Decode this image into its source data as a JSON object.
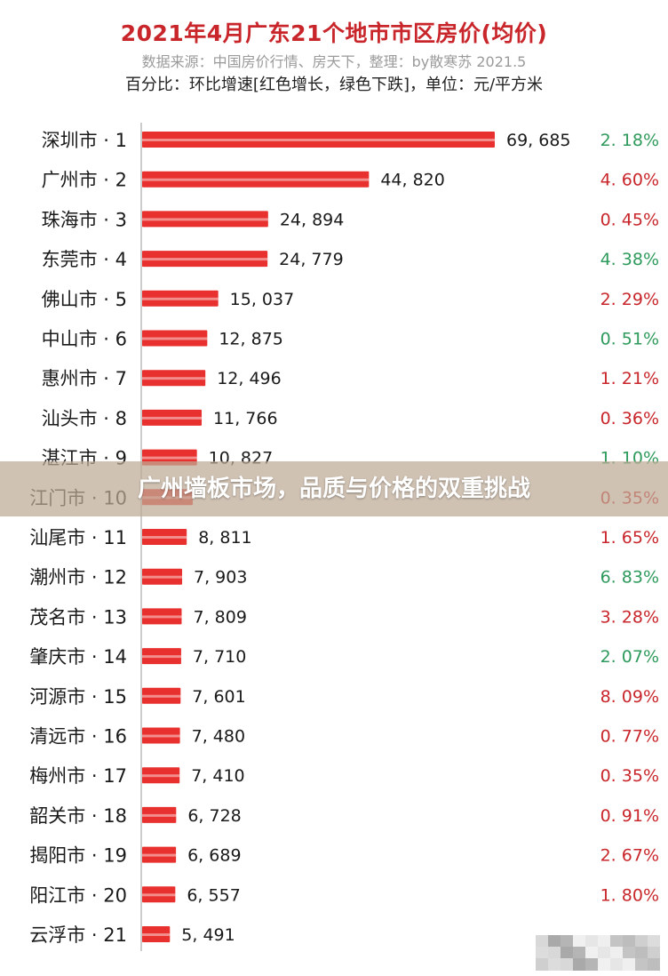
{
  "header": {
    "title": "2021年4月广东21个地市市区房价(均价)",
    "source": "数据来源：中国房价行情、房天下，整理：by散寒苏 2021.5",
    "unit_note": "百分比：环比增速[红色增长，绿色下跌]，单位：元/平方米"
  },
  "overlay": {
    "text": "广州墙板市场，品质与价格的双重挑战"
  },
  "colors": {
    "bar": "#e8302f",
    "increase": "#c8262b",
    "decrease": "#2e9a5c"
  },
  "chart_data": {
    "type": "bar",
    "orientation": "horizontal",
    "title": "2021年4月广东21个地市市区房价(均价)",
    "categories": [
      "深圳市 · 1",
      "广州市 · 2",
      "珠海市 · 3",
      "东莞市 · 4",
      "佛山市 · 5",
      "中山市 · 6",
      "惠州市 · 7",
      "汕头市 · 8",
      "湛江市 · 9",
      "江门市 · 10",
      "汕尾市 · 11",
      "潮州市 · 12",
      "茂名市 · 13",
      "肇庆市 · 14",
      "河源市 · 15",
      "清远市 · 16",
      "梅州市 · 17",
      "韶关市 · 18",
      "揭阳市 · 19",
      "阳江市 · 20",
      "云浮市 · 21"
    ],
    "values": [
      69685,
      44820,
      24894,
      24779,
      15037,
      12875,
      12496,
      11766,
      10827,
      10000,
      8811,
      7903,
      7809,
      7710,
      7601,
      7480,
      7410,
      6728,
      6689,
      6557,
      5491
    ],
    "value_labels": [
      "69, 685",
      "44, 820",
      "24, 894",
      "24, 779",
      "15, 037",
      "12, 875",
      "12, 496",
      "11, 766",
      "10, 827",
      "",
      "8, 811",
      "7, 903",
      "7, 809",
      "7, 710",
      "7, 601",
      "7, 480",
      "7, 410",
      "6, 728",
      "6, 689",
      "6, 557",
      "5, 491"
    ],
    "mom_change": [
      "2. 18%",
      "4. 60%",
      "0. 45%",
      "4. 38%",
      "2. 29%",
      "0. 51%",
      "1. 21%",
      "0. 36%",
      "1. 10%",
      "0. 35%",
      "1. 65%",
      "6. 83%",
      "3. 28%",
      "2. 07%",
      "8. 09%",
      "0. 77%",
      "0. 35%",
      "0. 91%",
      "2. 67%",
      "1. 80%",
      ""
    ],
    "mom_direction": [
      "down",
      "up",
      "up",
      "down",
      "up",
      "down",
      "up",
      "up",
      "down",
      "up",
      "up",
      "down",
      "up",
      "down",
      "up",
      "up",
      "up",
      "up",
      "up",
      "up",
      "up"
    ],
    "xlim": [
      0,
      70000
    ],
    "legend": "none",
    "grid": false
  }
}
